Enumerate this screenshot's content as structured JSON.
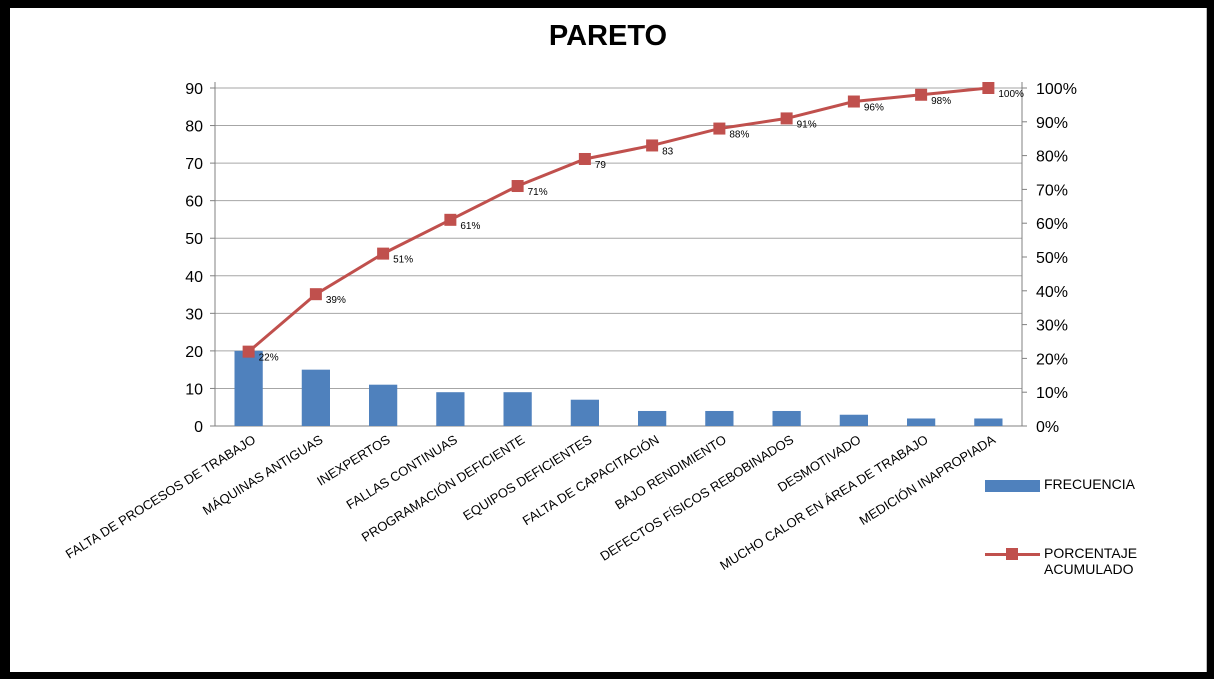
{
  "chart_data": {
    "type": "bar",
    "title": "PARETO",
    "categories": [
      "FALTA DE PROCESOS DE TRABAJO",
      "MÁQUINAS ANTIGUAS",
      "INEXPERTOS",
      "FALLAS CONTINUAS",
      "PROGRAMACIÓN DEFICIENTE",
      "EQUIPOS DEFICIENTES",
      "FALTA DE CAPACITACIÓN",
      "BAJO RENDIMIENTO",
      "DEFECTOS FÍSICOS REBOBINADOS",
      "DESMOTIVADO",
      "MUCHO CALOR EN ÁREA DE TRABAJO",
      "MEDICIÓN INAPROPIADA"
    ],
    "series": [
      {
        "name": "FRECUENCIA",
        "type": "bar",
        "axis": "left",
        "color": "#4f81bd",
        "values": [
          20,
          15,
          11,
          9,
          9,
          7,
          4,
          4,
          4,
          3,
          2,
          2
        ]
      },
      {
        "name": "PORCENTAJE ACUMULADO",
        "type": "line",
        "axis": "right",
        "color": "#c0504d",
        "values": [
          22,
          39,
          51,
          61,
          71,
          79,
          83,
          88,
          91,
          96,
          98,
          100
        ],
        "data_labels": [
          "22%",
          "39%",
          "51%",
          "61%",
          "71%",
          "79",
          "83",
          "88%",
          "91%",
          "96%",
          "98%",
          "100%"
        ]
      }
    ],
    "y_left": {
      "ylim": [
        0,
        90
      ],
      "ticks": [
        0,
        10,
        20,
        30,
        40,
        50,
        60,
        70,
        80,
        90
      ],
      "tick_labels": [
        "0",
        "10",
        "20",
        "30",
        "40",
        "50",
        "60",
        "70",
        "80",
        "90"
      ]
    },
    "y_right": {
      "ylim": [
        0,
        100
      ],
      "ticks": [
        0,
        10,
        20,
        30,
        40,
        50,
        60,
        70,
        80,
        90,
        100
      ],
      "tick_labels": [
        "0%",
        "10%",
        "20%",
        "30%",
        "40%",
        "50%",
        "60%",
        "70%",
        "80%",
        "90%",
        "100%"
      ]
    },
    "grid": true,
    "legend_position": "right",
    "legend": [
      {
        "label": "FRECUENCIA",
        "marker": "bar"
      },
      {
        "label": "PORCENTAJE ACUMULADO",
        "marker": "line"
      }
    ]
  }
}
